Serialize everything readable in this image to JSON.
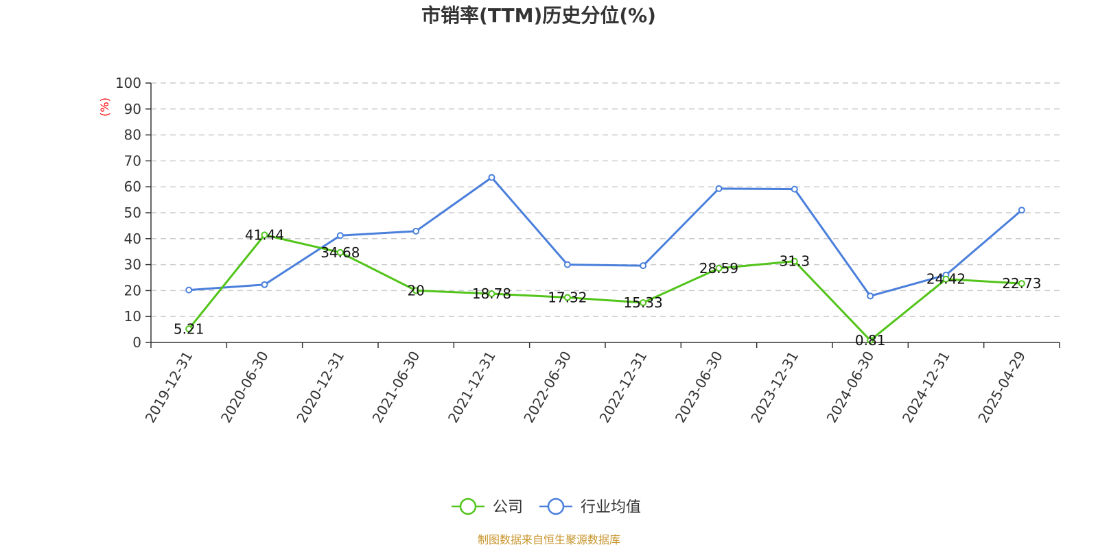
{
  "chart_data": {
    "type": "line",
    "title": "市销率(TTM)历史分位(%)",
    "ylabel": "(%)",
    "xlabel": "",
    "ylim": [
      0,
      100
    ],
    "yticks": [
      0,
      10,
      20,
      30,
      40,
      50,
      60,
      70,
      80,
      90,
      100
    ],
    "grid": true,
    "legend_position": "bottom-center",
    "categories": [
      "2019-12-31",
      "2020-06-30",
      "2020-12-31",
      "2021-06-30",
      "2021-12-31",
      "2022-06-30",
      "2022-12-31",
      "2023-06-30",
      "2023-12-31",
      "2024-06-30",
      "2024-12-31",
      "2025-04-29"
    ],
    "series": [
      {
        "name": "公司",
        "color": "#52c41a",
        "values": [
          5.21,
          41.44,
          34.68,
          20,
          18.78,
          17.32,
          15.33,
          28.59,
          31.3,
          0.81,
          24.42,
          22.73
        ],
        "labels": [
          "5.21",
          "41.44",
          "34.68",
          "20",
          "18.78",
          "17.32",
          "15.33",
          "28.59",
          "31.3",
          "0.81",
          "24.42",
          "22.73"
        ]
      },
      {
        "name": "行业均值",
        "color": "#4a7fdb",
        "values": [
          20.2,
          22.3,
          41.2,
          42.9,
          63.6,
          30.0,
          29.6,
          59.3,
          59.1,
          17.9,
          26.0,
          51.0
        ]
      }
    ],
    "source": "制图数据来自恒生聚源数据库",
    "colors": {
      "axis": "#333333",
      "grid": "#cccccc",
      "ylabel": "#ff0000",
      "source": "#c8962e"
    }
  }
}
